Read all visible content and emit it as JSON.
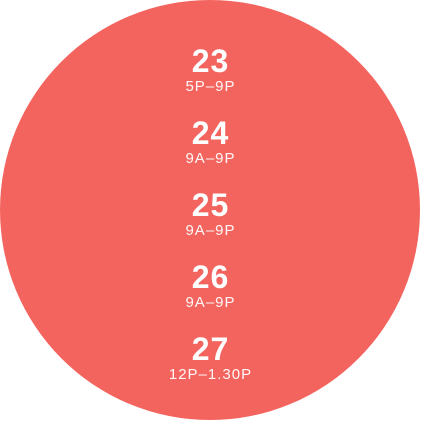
{
  "schedule": {
    "entries": [
      {
        "day": "23",
        "hours": "5P–9P"
      },
      {
        "day": "24",
        "hours": "9A–9P"
      },
      {
        "day": "25",
        "hours": "9A–9P"
      },
      {
        "day": "26",
        "hours": "9A–9P"
      },
      {
        "day": "27",
        "hours": "12P–1.30P"
      }
    ]
  },
  "colors": {
    "circle": "#f4645f",
    "text": "#ffffff"
  }
}
